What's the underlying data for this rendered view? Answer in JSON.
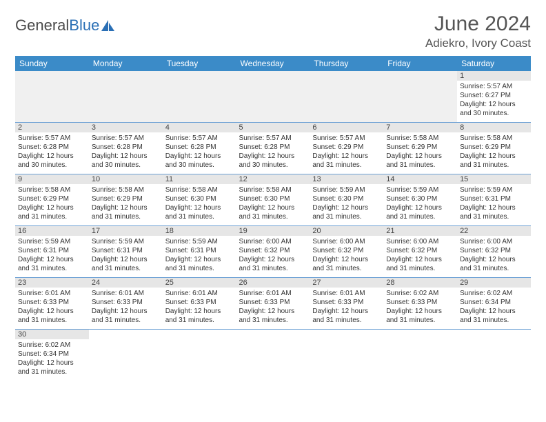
{
  "logo": {
    "text_gray": "General",
    "text_blue": "Blue"
  },
  "title": "June 2024",
  "location": "Adiekro, Ivory Coast",
  "colors": {
    "header_bg": "#3b8bc8",
    "header_text": "#ffffff",
    "daynum_bg": "#e6e6e6",
    "cell_border": "#6a9fd4",
    "text": "#333333",
    "title_text": "#555555",
    "logo_gray": "#4a4a4a",
    "logo_blue": "#2a6fb5"
  },
  "typography": {
    "title_fontsize": 30,
    "location_fontsize": 17,
    "weekday_fontsize": 12,
    "daynum_fontsize": 11,
    "cell_fontsize": 10
  },
  "weekdays": [
    "Sunday",
    "Monday",
    "Tuesday",
    "Wednesday",
    "Thursday",
    "Friday",
    "Saturday"
  ],
  "weeks": [
    [
      null,
      null,
      null,
      null,
      null,
      null,
      {
        "n": "1",
        "sr": "Sunrise: 5:57 AM",
        "ss": "Sunset: 6:27 PM",
        "dl": "Daylight: 12 hours and 30 minutes."
      }
    ],
    [
      {
        "n": "2",
        "sr": "Sunrise: 5:57 AM",
        "ss": "Sunset: 6:28 PM",
        "dl": "Daylight: 12 hours and 30 minutes."
      },
      {
        "n": "3",
        "sr": "Sunrise: 5:57 AM",
        "ss": "Sunset: 6:28 PM",
        "dl": "Daylight: 12 hours and 30 minutes."
      },
      {
        "n": "4",
        "sr": "Sunrise: 5:57 AM",
        "ss": "Sunset: 6:28 PM",
        "dl": "Daylight: 12 hours and 30 minutes."
      },
      {
        "n": "5",
        "sr": "Sunrise: 5:57 AM",
        "ss": "Sunset: 6:28 PM",
        "dl": "Daylight: 12 hours and 30 minutes."
      },
      {
        "n": "6",
        "sr": "Sunrise: 5:57 AM",
        "ss": "Sunset: 6:29 PM",
        "dl": "Daylight: 12 hours and 31 minutes."
      },
      {
        "n": "7",
        "sr": "Sunrise: 5:58 AM",
        "ss": "Sunset: 6:29 PM",
        "dl": "Daylight: 12 hours and 31 minutes."
      },
      {
        "n": "8",
        "sr": "Sunrise: 5:58 AM",
        "ss": "Sunset: 6:29 PM",
        "dl": "Daylight: 12 hours and 31 minutes."
      }
    ],
    [
      {
        "n": "9",
        "sr": "Sunrise: 5:58 AM",
        "ss": "Sunset: 6:29 PM",
        "dl": "Daylight: 12 hours and 31 minutes."
      },
      {
        "n": "10",
        "sr": "Sunrise: 5:58 AM",
        "ss": "Sunset: 6:29 PM",
        "dl": "Daylight: 12 hours and 31 minutes."
      },
      {
        "n": "11",
        "sr": "Sunrise: 5:58 AM",
        "ss": "Sunset: 6:30 PM",
        "dl": "Daylight: 12 hours and 31 minutes."
      },
      {
        "n": "12",
        "sr": "Sunrise: 5:58 AM",
        "ss": "Sunset: 6:30 PM",
        "dl": "Daylight: 12 hours and 31 minutes."
      },
      {
        "n": "13",
        "sr": "Sunrise: 5:59 AM",
        "ss": "Sunset: 6:30 PM",
        "dl": "Daylight: 12 hours and 31 minutes."
      },
      {
        "n": "14",
        "sr": "Sunrise: 5:59 AM",
        "ss": "Sunset: 6:30 PM",
        "dl": "Daylight: 12 hours and 31 minutes."
      },
      {
        "n": "15",
        "sr": "Sunrise: 5:59 AM",
        "ss": "Sunset: 6:31 PM",
        "dl": "Daylight: 12 hours and 31 minutes."
      }
    ],
    [
      {
        "n": "16",
        "sr": "Sunrise: 5:59 AM",
        "ss": "Sunset: 6:31 PM",
        "dl": "Daylight: 12 hours and 31 minutes."
      },
      {
        "n": "17",
        "sr": "Sunrise: 5:59 AM",
        "ss": "Sunset: 6:31 PM",
        "dl": "Daylight: 12 hours and 31 minutes."
      },
      {
        "n": "18",
        "sr": "Sunrise: 5:59 AM",
        "ss": "Sunset: 6:31 PM",
        "dl": "Daylight: 12 hours and 31 minutes."
      },
      {
        "n": "19",
        "sr": "Sunrise: 6:00 AM",
        "ss": "Sunset: 6:32 PM",
        "dl": "Daylight: 12 hours and 31 minutes."
      },
      {
        "n": "20",
        "sr": "Sunrise: 6:00 AM",
        "ss": "Sunset: 6:32 PM",
        "dl": "Daylight: 12 hours and 31 minutes."
      },
      {
        "n": "21",
        "sr": "Sunrise: 6:00 AM",
        "ss": "Sunset: 6:32 PM",
        "dl": "Daylight: 12 hours and 31 minutes."
      },
      {
        "n": "22",
        "sr": "Sunrise: 6:00 AM",
        "ss": "Sunset: 6:32 PM",
        "dl": "Daylight: 12 hours and 31 minutes."
      }
    ],
    [
      {
        "n": "23",
        "sr": "Sunrise: 6:01 AM",
        "ss": "Sunset: 6:33 PM",
        "dl": "Daylight: 12 hours and 31 minutes."
      },
      {
        "n": "24",
        "sr": "Sunrise: 6:01 AM",
        "ss": "Sunset: 6:33 PM",
        "dl": "Daylight: 12 hours and 31 minutes."
      },
      {
        "n": "25",
        "sr": "Sunrise: 6:01 AM",
        "ss": "Sunset: 6:33 PM",
        "dl": "Daylight: 12 hours and 31 minutes."
      },
      {
        "n": "26",
        "sr": "Sunrise: 6:01 AM",
        "ss": "Sunset: 6:33 PM",
        "dl": "Daylight: 12 hours and 31 minutes."
      },
      {
        "n": "27",
        "sr": "Sunrise: 6:01 AM",
        "ss": "Sunset: 6:33 PM",
        "dl": "Daylight: 12 hours and 31 minutes."
      },
      {
        "n": "28",
        "sr": "Sunrise: 6:02 AM",
        "ss": "Sunset: 6:33 PM",
        "dl": "Daylight: 12 hours and 31 minutes."
      },
      {
        "n": "29",
        "sr": "Sunrise: 6:02 AM",
        "ss": "Sunset: 6:34 PM",
        "dl": "Daylight: 12 hours and 31 minutes."
      }
    ],
    [
      {
        "n": "30",
        "sr": "Sunrise: 6:02 AM",
        "ss": "Sunset: 6:34 PM",
        "dl": "Daylight: 12 hours and 31 minutes."
      },
      null,
      null,
      null,
      null,
      null,
      null
    ]
  ]
}
